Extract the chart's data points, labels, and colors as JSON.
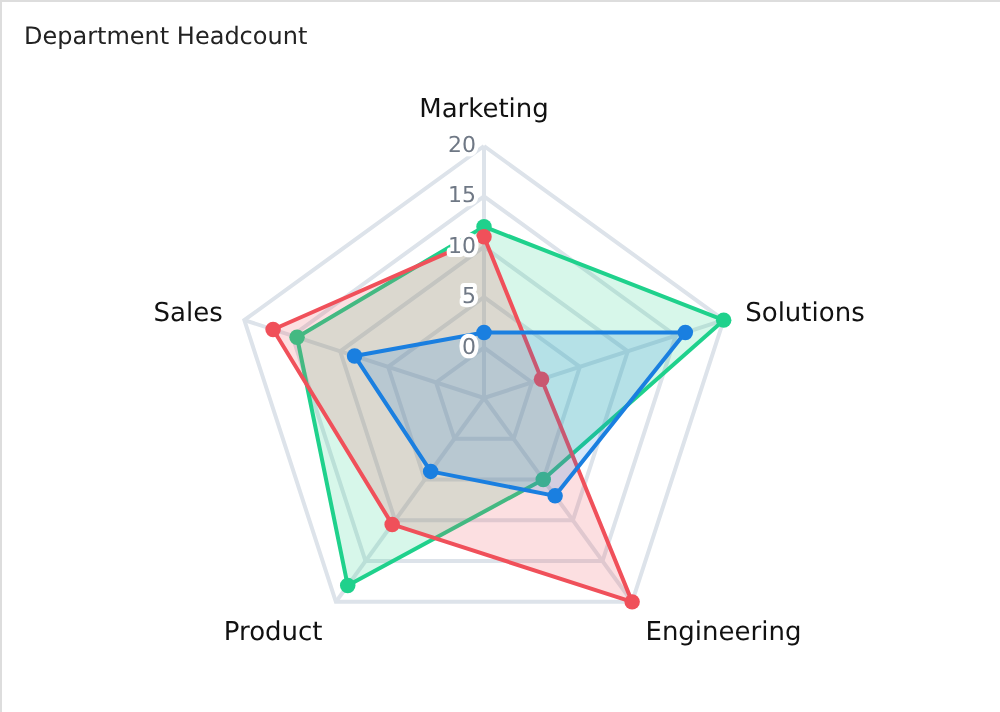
{
  "chart_data": {
    "type": "radar",
    "title": "Department Headcount",
    "categories": [
      "Marketing",
      "Solutions",
      "Engineering",
      "Product",
      "Sales"
    ],
    "ylim": [
      -5,
      20
    ],
    "yticks": [
      0,
      5,
      10,
      15,
      20
    ],
    "grid": true,
    "marker": "circle",
    "series": [
      {
        "color": "#1fd18c",
        "values": [
          12,
          20,
          5,
          18,
          14.5
        ]
      },
      {
        "color": "#f0505a",
        "values": [
          11,
          1,
          20,
          10.5,
          17
        ]
      },
      {
        "color": "#1a7fe0",
        "values": [
          1.5,
          16,
          7,
          4,
          8.5
        ]
      }
    ]
  }
}
